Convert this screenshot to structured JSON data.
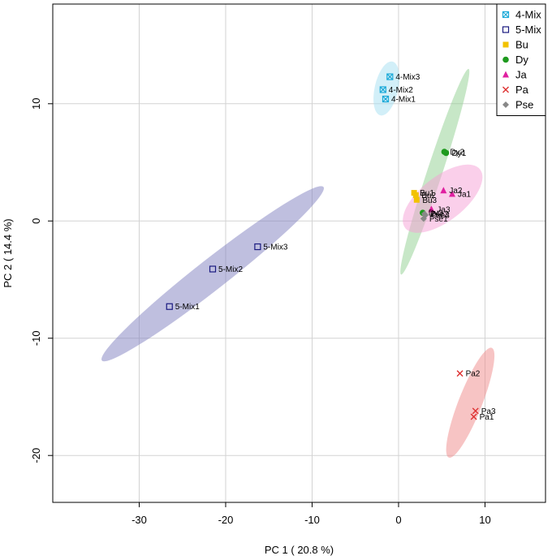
{
  "chart_data": {
    "type": "scatter",
    "xlabel": "PC 1 ( 20.8 %)",
    "ylabel": "PC 2 ( 14.4 %)",
    "xlim": [
      -40,
      17
    ],
    "ylim": [
      -24,
      18.5
    ],
    "x_ticks": [
      -30,
      -20,
      -10,
      0,
      10
    ],
    "y_ticks": [
      -20,
      -10,
      0,
      10
    ],
    "grid": true,
    "legend_position": "top-right",
    "series": [
      {
        "name": "4-Mix",
        "color": "#1aa9d8",
        "fill": "#a6dff2",
        "marker": "square-x",
        "points": [
          {
            "label": "4-Mix1",
            "x": -1.5,
            "y": 10.4
          },
          {
            "label": "4-Mix2",
            "x": -1.8,
            "y": 11.2
          },
          {
            "label": "4-Mix3",
            "x": -1.0,
            "y": 12.3
          }
        ],
        "ellipse": {
          "cx": -1.4,
          "cy": 11.3,
          "rx": 2.4,
          "ry": 0.85,
          "angle": 73
        }
      },
      {
        "name": "5-Mix",
        "color": "#1a1a80",
        "fill": "#8080c0",
        "marker": "square-open",
        "points": [
          {
            "label": "5-Mix1",
            "x": -26.5,
            "y": -7.3
          },
          {
            "label": "5-Mix2",
            "x": -21.5,
            "y": -4.1
          },
          {
            "label": "5-Mix3",
            "x": -16.3,
            "y": -2.2
          }
        ],
        "ellipse": {
          "cx": -21.5,
          "cy": -4.5,
          "rx": 14.8,
          "ry": 1.1,
          "angle": 30
        }
      },
      {
        "name": "Bu",
        "color": "#f2c200",
        "fill": "#f2c200",
        "marker": "square-filled",
        "points": [
          {
            "label": "Bu1",
            "x": 1.8,
            "y": 2.4
          },
          {
            "label": "Bu2",
            "x": 2.0,
            "y": 2.2
          },
          {
            "label": "Bu3",
            "x": 2.1,
            "y": 1.8
          }
        ],
        "ellipse": null
      },
      {
        "name": "Dy",
        "color": "#1e9a1e",
        "fill": "#8fd08f",
        "marker": "circle-filled",
        "points": [
          {
            "label": "Dy1",
            "x": 5.5,
            "y": 5.8
          },
          {
            "label": "Dy2",
            "x": 5.3,
            "y": 5.9
          },
          {
            "label": "Dy3",
            "x": 2.8,
            "y": 0.7
          }
        ],
        "ellipse": {
          "cx": 4.2,
          "cy": 4.2,
          "rx": 9.6,
          "ry": 0.55,
          "angle": 66
        }
      },
      {
        "name": "Ja",
        "color": "#e020a0",
        "fill": "#f59fd6",
        "marker": "triangle-filled",
        "points": [
          {
            "label": "Ja1",
            "x": 6.2,
            "y": 2.3
          },
          {
            "label": "Ja2",
            "x": 5.2,
            "y": 2.6
          },
          {
            "label": "Ja3",
            "x": 3.8,
            "y": 1.0
          }
        ],
        "ellipse": {
          "cx": 5.1,
          "cy": 1.9,
          "rx": 5.0,
          "ry": 1.6,
          "angle": 30
        }
      },
      {
        "name": "Pa",
        "color": "#dd3030",
        "fill": "#f08a8a",
        "marker": "cross",
        "points": [
          {
            "label": "Pa1",
            "x": 8.7,
            "y": -16.7
          },
          {
            "label": "Pa2",
            "x": 7.1,
            "y": -13.0
          },
          {
            "label": "Pa3",
            "x": 8.9,
            "y": -16.2
          }
        ],
        "ellipse": {
          "cx": 8.3,
          "cy": -15.5,
          "rx": 5.3,
          "ry": 0.85,
          "angle": 62
        }
      },
      {
        "name": "Pse",
        "color": "#888888",
        "fill": "#bbbbbb",
        "marker": "diamond-filled",
        "points": [
          {
            "label": "Pse1",
            "x": 2.9,
            "y": 0.2
          },
          {
            "label": "Pse2",
            "x": 3.0,
            "y": 0.6
          },
          {
            "label": "Pse3",
            "x": 3.1,
            "y": 0.5
          }
        ],
        "ellipse": null
      }
    ]
  }
}
